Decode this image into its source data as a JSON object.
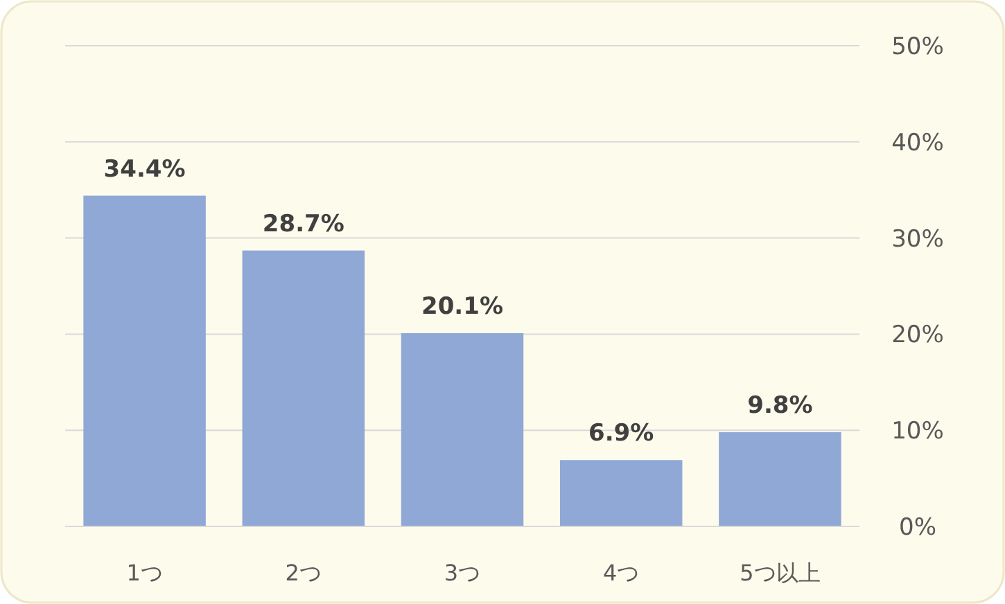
{
  "chart_data": {
    "type": "bar",
    "categories": [
      "1つ",
      "2つ",
      "3つ",
      "4つ",
      "5つ以上"
    ],
    "values": [
      34.4,
      28.7,
      20.1,
      6.9,
      9.8
    ],
    "value_labels": [
      "34.4%",
      "28.7%",
      "20.1%",
      "6.9%",
      "9.8%"
    ],
    "color": "#8fa8d6",
    "ylim": [
      0,
      50
    ],
    "yticks": [
      {
        "value": 0,
        "label": "0%"
      },
      {
        "value": 10,
        "label": "10%"
      },
      {
        "value": 20,
        "label": "20%"
      },
      {
        "value": 30,
        "label": "30%"
      },
      {
        "value": 40,
        "label": "40%"
      },
      {
        "value": 50,
        "label": "50%"
      }
    ],
    "grid": "y"
  }
}
